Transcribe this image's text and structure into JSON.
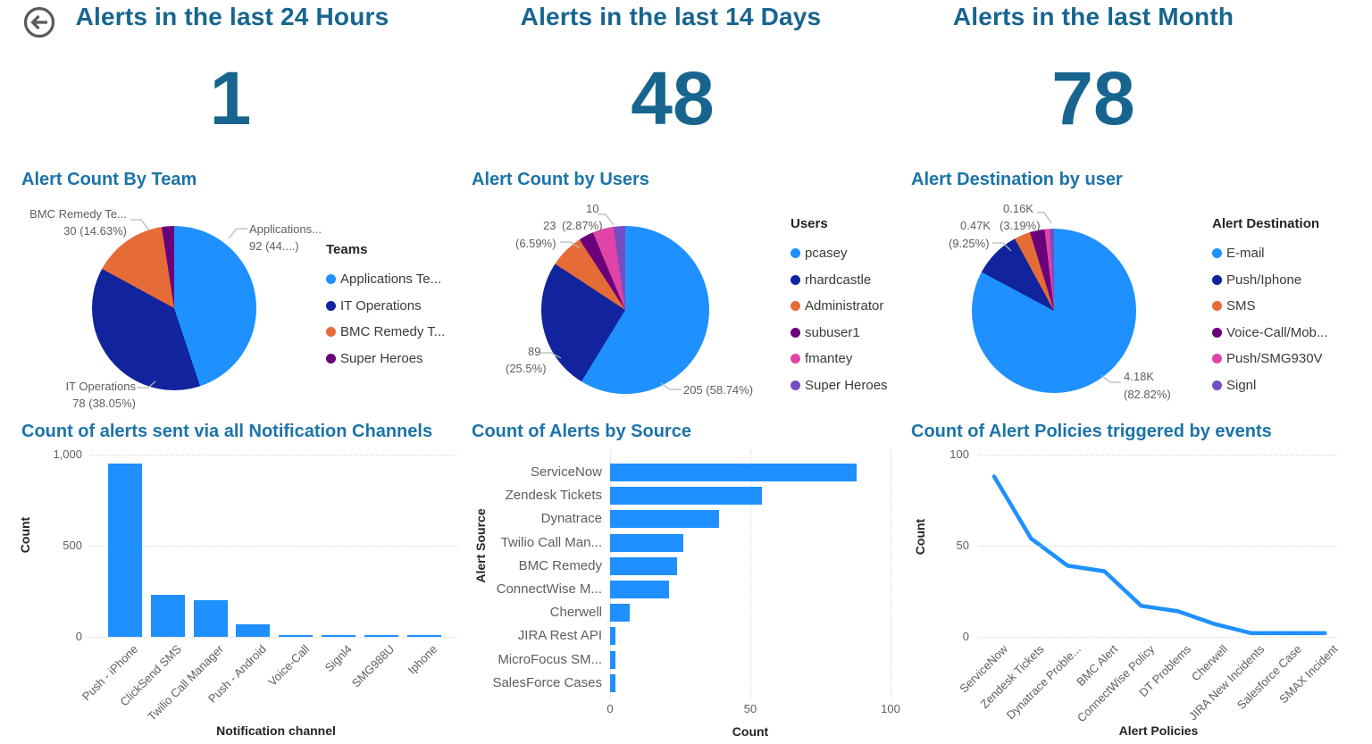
{
  "page": {
    "background": "#FFFFFF"
  },
  "colors": {
    "header_text": "#17658F",
    "chart_title": "#1B74A8",
    "axis_text": "#605E5C",
    "axis_title_text": "#252423",
    "legend_text": "#3A3A38",
    "leader_line": "#B8B8B8",
    "back_icon": "#5A5A5A",
    "series_blue": "#1E90FF",
    "series_dark_blue": "#12239E",
    "series_orange": "#E66C37",
    "series_purple": "#6B007B",
    "series_pink": "#E044A7",
    "series_lavender": "#744EC2"
  },
  "chart_data": [
    {
      "type": "kpi",
      "title": "Alerts in the last 24 Hours",
      "value": "1"
    },
    {
      "type": "kpi",
      "title": "Alerts in the last 14 Days",
      "value": "48"
    },
    {
      "type": "kpi",
      "title": "Alerts in the last Month",
      "value": "78"
    },
    {
      "type": "pie",
      "title": "Alert Count By Team",
      "legend_title": "Teams",
      "legend_position": "right",
      "slices": [
        {
          "label": "Applications Te...",
          "value": 92,
          "pct": 44.88,
          "color": "#1E90FF",
          "callout": [
            "Applications...",
            "92 (44....)"
          ]
        },
        {
          "label": "IT Operations",
          "value": 78,
          "pct": 38.05,
          "color": "#12239E",
          "callout": [
            "IT Operations",
            "78 (38.05%)"
          ]
        },
        {
          "label": "BMC Remedy T...",
          "value": 30,
          "pct": 14.63,
          "color": "#E66C37",
          "callout": [
            "BMC Remedy Te...",
            "30 (14.63%)"
          ]
        },
        {
          "label": "Super Heroes",
          "value": 5,
          "pct": 2.44,
          "color": "#6B007B",
          "callout": null,
          "estimated": true
        }
      ]
    },
    {
      "type": "pie",
      "title": "Alert Count by Users",
      "legend_title": "Users",
      "legend_position": "right",
      "slices": [
        {
          "label": "pcasey",
          "value": 205,
          "pct": 58.74,
          "color": "#1E90FF",
          "callout": [
            "205 (58.74%)"
          ]
        },
        {
          "label": "rhardcastle",
          "value": 89,
          "pct": 25.5,
          "color": "#12239E",
          "callout": [
            "89",
            "(25.5%)"
          ]
        },
        {
          "label": "Administrator",
          "value": 23,
          "pct": 6.59,
          "color": "#E66C37",
          "callout": [
            "23",
            "(6.59%)"
          ]
        },
        {
          "label": "subuser1",
          "value": 10,
          "pct": 2.87,
          "color": "#6B007B",
          "callout": [
            "10",
            "(2.87%)"
          ]
        },
        {
          "label": "fmantey",
          "value": 14,
          "pct": 4.0,
          "color": "#E044A7",
          "callout": null,
          "estimated": true
        },
        {
          "label": "Super Heroes",
          "value": 8,
          "pct": 2.3,
          "color": "#744EC2",
          "callout": null,
          "estimated": true
        }
      ]
    },
    {
      "type": "pie",
      "title": "Alert Destination by user",
      "legend_title": "Alert Destination",
      "legend_position": "right",
      "slices": [
        {
          "label": "E-mail",
          "value": 4180,
          "display": "4.18K",
          "pct": 82.82,
          "color": "#1E90FF",
          "callout": [
            "4.18K",
            "(82.82%)"
          ]
        },
        {
          "label": "Push/Iphone",
          "value": 470,
          "display": "0.47K",
          "pct": 9.25,
          "color": "#12239E",
          "callout": [
            "0.47K",
            "(9.25%)"
          ]
        },
        {
          "label": "SMS",
          "value": 160,
          "display": "0.16K",
          "pct": 3.19,
          "color": "#E66C37",
          "callout": [
            "0.16K",
            "(3.19%)"
          ]
        },
        {
          "label": "Voice-Call/Mob...",
          "value": 146,
          "pct": 2.9,
          "color": "#6B007B",
          "callout": null,
          "estimated": true
        },
        {
          "label": "Push/SMG930V",
          "value": 50,
          "pct": 1.0,
          "color": "#E044A7",
          "callout": null,
          "estimated": true
        },
        {
          "label": "Signl",
          "value": 42,
          "pct": 0.84,
          "color": "#744EC2",
          "callout": null,
          "estimated": true
        }
      ]
    },
    {
      "type": "bar",
      "title": "Count of alerts sent via all Notification Channels",
      "categories": [
        "Push - iPhone",
        "ClickSend SMS",
        "Twilio Call Manager",
        "Push - Android",
        "Voice-Call",
        "Signl4",
        "SMG988U",
        "Iphone"
      ],
      "values": [
        950,
        230,
        200,
        70,
        10,
        8,
        8,
        8
      ],
      "xlabel": "Notification channel",
      "ylabel": "Count",
      "yticks": [
        "1,000",
        "500",
        "0"
      ],
      "ylim": [
        0,
        1000
      ],
      "grid": "horizontal-dotted",
      "bar_color": "#1E90FF"
    },
    {
      "type": "bar-horizontal",
      "title": "Count of Alerts by Source",
      "categories": [
        "ServiceNow",
        "Zendesk Tickets",
        "Dynatrace",
        "Twilio Call Man...",
        "BMC Remedy",
        "ConnectWise M...",
        "Cherwell",
        "JIRA Rest API",
        "MicroFocus SM...",
        "SalesForce Cases"
      ],
      "values": [
        88,
        54,
        39,
        26,
        24,
        21,
        7,
        2,
        2,
        2
      ],
      "xlabel": "Count",
      "ylabel": "Alert Source",
      "xticks": [
        "0",
        "50",
        "100"
      ],
      "xlim": [
        0,
        100
      ],
      "grid": "vertical-dotted",
      "bar_color": "#1E90FF"
    },
    {
      "type": "line",
      "title": "Count of Alert Policies triggered by events",
      "categories": [
        "ServiceNow",
        "Zendesk Tickets",
        "Dynatrace Proble...",
        "BMC Alert",
        "ConnectWise Policy",
        "DT Problems",
        "Cherwell",
        "JIRA New Incidents",
        "Salesforce Case",
        "SMAX Incident"
      ],
      "values": [
        88,
        54,
        39,
        36,
        17,
        14,
        7,
        2,
        2,
        2
      ],
      "xlabel": "Alert Policies",
      "ylabel": "Count",
      "yticks": [
        "100",
        "50",
        "0"
      ],
      "ylim": [
        0,
        100
      ],
      "grid": "horizontal-dotted",
      "line_color": "#1E90FF"
    }
  ]
}
